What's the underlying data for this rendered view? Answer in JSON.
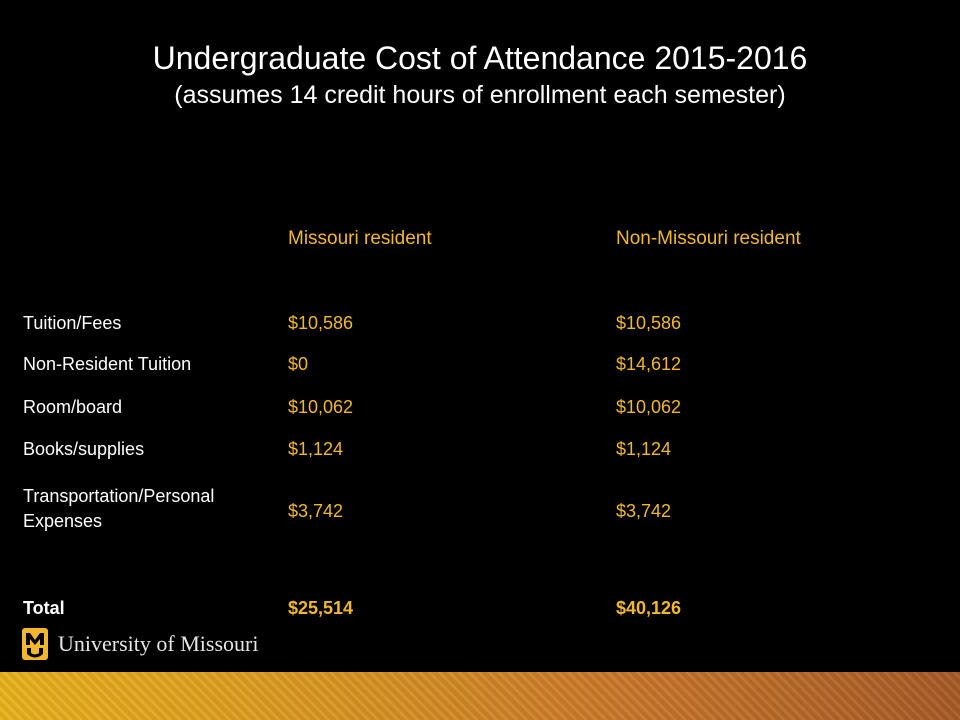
{
  "title": "Undergraduate Cost of Attendance 2015-2016",
  "subtitle": "(assumes 14 credit hours of enrollment each semester)",
  "columns": [
    "Missouri resident",
    "Non-Missouri resident"
  ],
  "rows": [
    {
      "label": "Tuition/Fees",
      "resident": "$10,586",
      "nonresident": "$10,586"
    },
    {
      "label": "Non-Resident Tuition",
      "resident": "$0",
      "nonresident": "$14,612"
    },
    {
      "label": "Room/board",
      "resident": "$10,062",
      "nonresident": "$10,062"
    },
    {
      "label": "Books/supplies",
      "resident": "$1,124",
      "nonresident": "$1,124"
    },
    {
      "label": "Transportation/Personal Expenses",
      "resident": "$3,742",
      "nonresident": "$3,742"
    },
    {
      "label": "Total",
      "resident": "$25,514",
      "nonresident": "$40,126"
    }
  ],
  "logo": {
    "mark": "M",
    "text": "University of Missouri"
  },
  "colors": {
    "background": "#000000",
    "accent": "#f1b82d",
    "text": "#ffffff"
  }
}
